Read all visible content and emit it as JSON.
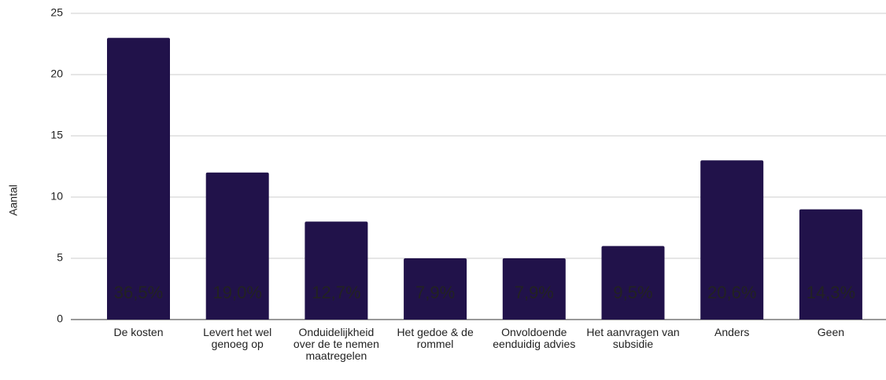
{
  "chart_data": {
    "type": "bar",
    "y_label": "Aantal",
    "categories": [
      "De kosten",
      "Levert het wel genoeg op",
      "Onduidelijkheid over de te nemen maatregelen",
      "Het gedoe & de rommel",
      "Onvoldoende eenduidig advies",
      "Het aanvragen van subsidie",
      "Anders",
      "Geen"
    ],
    "values": [
      23,
      12,
      8,
      5,
      5,
      6,
      13,
      9
    ],
    "percent_labels": [
      "36,5%",
      "19,0%",
      "12,7%",
      "7,9%",
      "7,9%",
      "9,5%",
      "20,6%",
      "14,3%"
    ],
    "color": "#21124a",
    "ylim": [
      0,
      25
    ],
    "yticks": [
      0,
      5,
      10,
      15,
      20,
      25
    ],
    "grid": true
  }
}
